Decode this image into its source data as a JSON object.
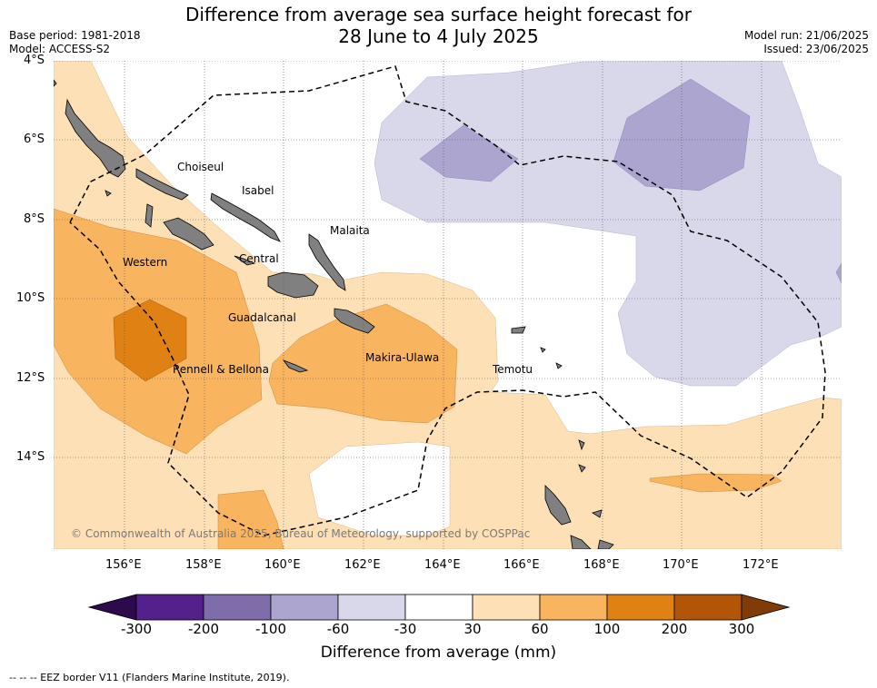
{
  "title": {
    "line1": "Difference from average sea surface height forecast for",
    "line2": "28 June to 4 July 2025"
  },
  "meta": {
    "base_period": "Base period: 1981-2018",
    "model": "Model: ACCESS-S2",
    "model_run": "Model run: 21/06/2025",
    "issued": "Issued: 23/06/2025"
  },
  "axes": {
    "lat_labels": [
      "4°S",
      "6°S",
      "8°S",
      "10°S",
      "12°S",
      "14°S"
    ],
    "lon_labels": [
      "156°E",
      "158°E",
      "160°E",
      "162°E",
      "164°E",
      "166°E",
      "168°E",
      "170°E",
      "172°E"
    ]
  },
  "places": [
    "Choiseul",
    "Isabel",
    "Malaita",
    "Western",
    "Central",
    "Guadalcanal",
    "Makira-Ulawa",
    "Rennell & Bellona",
    "Temotu"
  ],
  "copyright": "© Commonwealth of Australia 2025, Bureau of Meteorology, supported by COSPPac",
  "colorbar": {
    "title": "Difference from average (mm)",
    "ticks": [
      "-300",
      "-200",
      "-100",
      "-60",
      "-30",
      "30",
      "60",
      "100",
      "200",
      "300"
    ],
    "colors": [
      "#54218c",
      "#7e6daa",
      "#aca5d0",
      "#d8d8ea",
      "#ffffff",
      "#fde0b5",
      "#f9b45f",
      "#e08114",
      "#b25506"
    ],
    "under_color": "#2d0a4b",
    "over_color": "#7f3b08"
  },
  "footer": "--  --  -- EEZ border V11 (Flanders Marine Institute, 2019)."
}
